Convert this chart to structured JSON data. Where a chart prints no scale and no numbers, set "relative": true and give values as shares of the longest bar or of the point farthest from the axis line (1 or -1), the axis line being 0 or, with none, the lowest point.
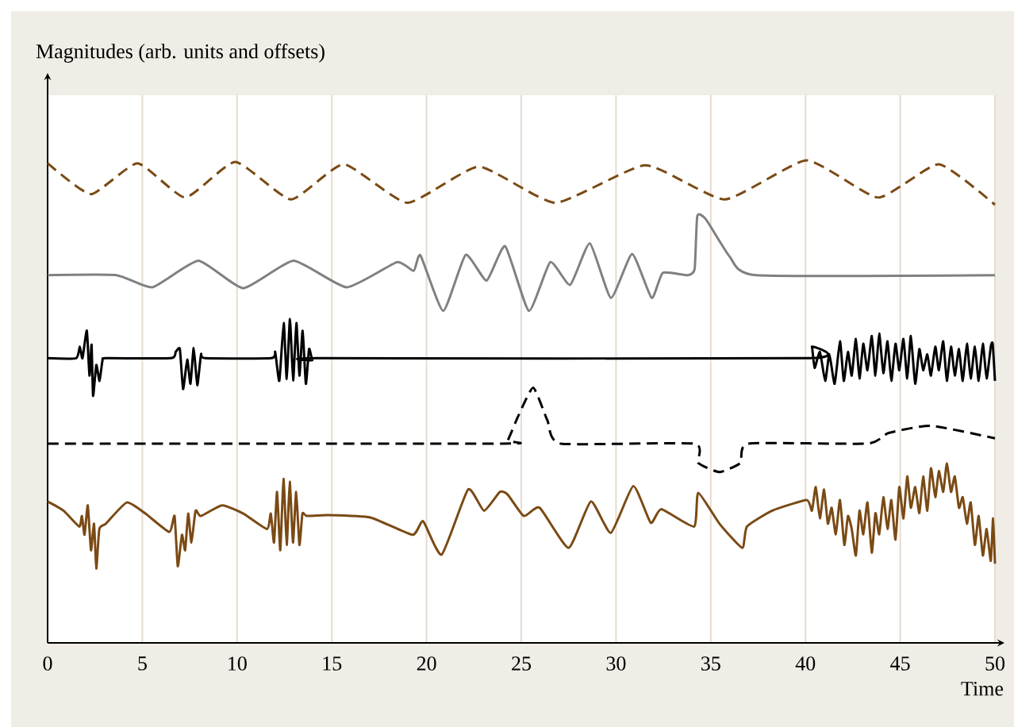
{
  "chart_data": {
    "type": "line",
    "relative": true,
    "ylabel": "Magnitudes (arb. units and offsets)",
    "xlabel": "Time",
    "xlim": [
      0,
      50
    ],
    "xticks": [
      0,
      5,
      10,
      15,
      20,
      25,
      30,
      35,
      40,
      45,
      50
    ],
    "grid": "x",
    "tick_labels": "x",
    "series": [
      {
        "color": "#7a4a14",
        "line_style": "dashed",
        "x": [
          0,
          2.28,
          4.75,
          7.26,
          9.91,
          12.84,
          15.63,
          18.99,
          22.76,
          26.8,
          31.55,
          35.74,
          40.06,
          43.83,
          47.04,
          50
        ],
        "values": [
          0.994,
          0.93,
          0.994,
          0.923,
          0.997,
          0.919,
          0.992,
          0.912,
          0.987,
          0.912,
          0.99,
          0.919,
          1.0,
          0.923,
          0.992,
          0.908
        ]
      },
      {
        "color": "#808080",
        "line_style": "solid",
        "x": [
          0,
          3.63,
          5.53,
          7.96,
          10.33,
          12.98,
          15.78,
          18.43,
          19.32,
          19.68,
          20.88,
          22.06,
          23.17,
          24.15,
          25.4,
          26.53,
          27.58,
          28.62,
          29.73,
          30.85,
          31.88,
          32.47,
          33.78,
          34.15,
          34.29,
          34.76,
          36.01,
          37.41,
          50
        ],
        "values": [
          0.762,
          0.762,
          0.737,
          0.792,
          0.735,
          0.792,
          0.737,
          0.789,
          0.771,
          0.803,
          0.688,
          0.804,
          0.751,
          0.822,
          0.688,
          0.789,
          0.742,
          0.828,
          0.715,
          0.806,
          0.715,
          0.767,
          0.762,
          0.775,
          0.885,
          0.877,
          0.8,
          0.762,
          0.762
        ]
      },
      {
        "color": "#000000",
        "line_style": "solid",
        "x": [
          0,
          1.5,
          1.7,
          1.84,
          2.07,
          2.21,
          2.32,
          2.4,
          2.57,
          2.74,
          2.9,
          3.1,
          6.5,
          6.76,
          6.98,
          7.15,
          7.37,
          7.54,
          7.71,
          7.9,
          8.1,
          8.32,
          11.8,
          12.01,
          12.23,
          12.46,
          12.62,
          12.79,
          12.96,
          13.13,
          13.29,
          13.46,
          13.63,
          13.8,
          13.97,
          14.2,
          40.2,
          40.34,
          40.48,
          40.76,
          41.04,
          41.26,
          41.54,
          41.82,
          42.02,
          42.24,
          42.44,
          42.66,
          42.85,
          43.05,
          43.27,
          43.5,
          43.69,
          43.89,
          44.11,
          44.33,
          44.53,
          44.75,
          44.95,
          45.17,
          45.37,
          45.56,
          45.79,
          46.01,
          46.21,
          46.43,
          46.62,
          46.85,
          47.04,
          47.27,
          47.46,
          47.68,
          47.88,
          48.1,
          48.3,
          48.52,
          48.72,
          48.94,
          49.14,
          49.36,
          49.56,
          49.78,
          49.88,
          50
        ],
        "values": [
          0.59,
          0.59,
          0.614,
          0.59,
          0.647,
          0.554,
          0.618,
          0.512,
          0.576,
          0.543,
          0.586,
          0.59,
          0.59,
          0.603,
          0.609,
          0.526,
          0.587,
          0.537,
          0.611,
          0.534,
          0.598,
          0.59,
          0.59,
          0.603,
          0.543,
          0.663,
          0.547,
          0.671,
          0.544,
          0.663,
          0.554,
          0.647,
          0.537,
          0.609,
          0.586,
          0.59,
          0.59,
          0.614,
          0.57,
          0.603,
          0.543,
          0.598,
          0.537,
          0.625,
          0.543,
          0.603,
          0.554,
          0.63,
          0.548,
          0.62,
          0.565,
          0.636,
          0.554,
          0.641,
          0.559,
          0.625,
          0.543,
          0.62,
          0.565,
          0.63,
          0.548,
          0.636,
          0.537,
          0.609,
          0.565,
          0.598,
          0.554,
          0.614,
          0.565,
          0.625,
          0.543,
          0.614,
          0.554,
          0.609,
          0.543,
          0.62,
          0.548,
          0.614,
          0.543,
          0.62,
          0.548,
          0.614,
          0.62,
          0.543
        ]
      },
      {
        "color": "#000000",
        "line_style": "dashed",
        "x": [
          0,
          24.01,
          24.29,
          24.85,
          25.63,
          26.38,
          27.08,
          34.12,
          34.34,
          35.46,
          36.57,
          36.99,
          43.27,
          44.39,
          46.62,
          50
        ],
        "values": [
          0.413,
          0.413,
          0.42,
          0.471,
          0.529,
          0.461,
          0.413,
          0.413,
          0.373,
          0.354,
          0.373,
          0.413,
          0.413,
          0.435,
          0.45,
          0.424
        ]
      },
      {
        "color": "#7a4a14",
        "line_style": "solid",
        "x": [
          0,
          0.84,
          1.67,
          1.81,
          1.95,
          2.12,
          2.29,
          2.45,
          2.57,
          2.73,
          3.07,
          4.18,
          5.16,
          6.42,
          6.7,
          6.87,
          7.09,
          7.26,
          7.42,
          7.59,
          7.81,
          8.09,
          9.21,
          10.33,
          11.58,
          11.78,
          11.95,
          12.11,
          12.28,
          12.45,
          12.62,
          12.78,
          12.95,
          13.12,
          13.29,
          13.45,
          13.68,
          14.79,
          17.03,
          19.26,
          19.82,
          20.8,
          22.19,
          23.03,
          23.87,
          24.29,
          25.13,
          25.97,
          27.5,
          28.67,
          29.73,
          30.91,
          31.83,
          32.39,
          34.12,
          34.34,
          35.46,
          36.66,
          36.91,
          38.25,
          40.06,
          40.34,
          40.54,
          40.76,
          40.98,
          41.18,
          41.38,
          41.6,
          41.82,
          42.05,
          42.24,
          42.44,
          42.66,
          42.85,
          43.05,
          43.27,
          43.5,
          43.69,
          43.89,
          44.11,
          44.33,
          44.53,
          44.75,
          44.95,
          45.17,
          45.37,
          45.56,
          45.79,
          46.01,
          46.21,
          46.43,
          46.62,
          46.85,
          47.04,
          47.27,
          47.46,
          47.68,
          47.88,
          48.1,
          48.3,
          48.52,
          48.72,
          48.94,
          49.14,
          49.36,
          49.56,
          49.78,
          49.9,
          50
        ],
        "values": [
          0.293,
          0.274,
          0.241,
          0.263,
          0.224,
          0.285,
          0.192,
          0.247,
          0.154,
          0.236,
          0.247,
          0.291,
          0.268,
          0.23,
          0.263,
          0.159,
          0.224,
          0.192,
          0.268,
          0.208,
          0.274,
          0.263,
          0.285,
          0.268,
          0.236,
          0.268,
          0.208,
          0.313,
          0.192,
          0.34,
          0.203,
          0.334,
          0.208,
          0.313,
          0.203,
          0.268,
          0.263,
          0.265,
          0.26,
          0.224,
          0.252,
          0.183,
          0.318,
          0.274,
          0.313,
          0.307,
          0.263,
          0.28,
          0.197,
          0.293,
          0.228,
          0.325,
          0.249,
          0.277,
          0.241,
          0.311,
          0.247,
          0.197,
          0.241,
          0.274,
          0.296,
          0.274,
          0.323,
          0.258,
          0.318,
          0.247,
          0.28,
          0.225,
          0.296,
          0.203,
          0.263,
          0.236,
          0.181,
          0.274,
          0.225,
          0.291,
          0.187,
          0.269,
          0.225,
          0.302,
          0.236,
          0.296,
          0.214,
          0.323,
          0.258,
          0.345,
          0.28,
          0.323,
          0.269,
          0.345,
          0.274,
          0.362,
          0.302,
          0.356,
          0.313,
          0.372,
          0.313,
          0.345,
          0.28,
          0.302,
          0.247,
          0.291,
          0.203,
          0.263,
          0.181,
          0.236,
          0.17,
          0.258,
          0.164
        ]
      }
    ]
  }
}
